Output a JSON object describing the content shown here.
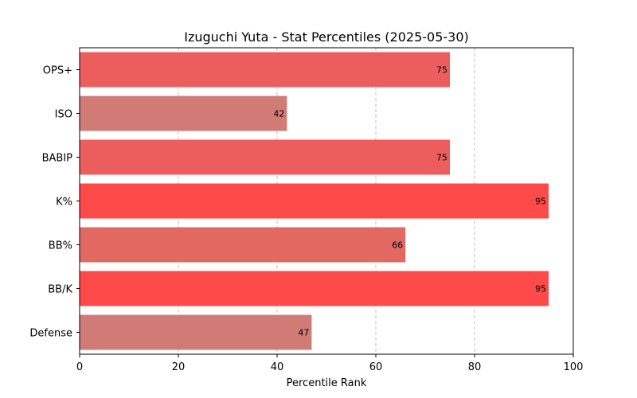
{
  "chart_data": {
    "type": "bar",
    "orientation": "horizontal",
    "title": "Izuguchi Yuta - Stat Percentiles (2025-05-30)",
    "xlabel": "Percentile Rank",
    "ylabel": "",
    "xlim": [
      0,
      100
    ],
    "xticks": [
      0,
      20,
      40,
      60,
      80,
      100
    ],
    "grid": "x dashed",
    "categories": [
      "OPS+",
      "ISO",
      "BABIP",
      "K%",
      "BB%",
      "BB/K",
      "Defense"
    ],
    "values": [
      75,
      42,
      75,
      95,
      66,
      95,
      47
    ],
    "colors": [
      "#ec5e5e",
      "#d17b77",
      "#ec5e5e",
      "#ff4a4a",
      "#e26862",
      "#ff4a4a",
      "#d17b77"
    ]
  }
}
